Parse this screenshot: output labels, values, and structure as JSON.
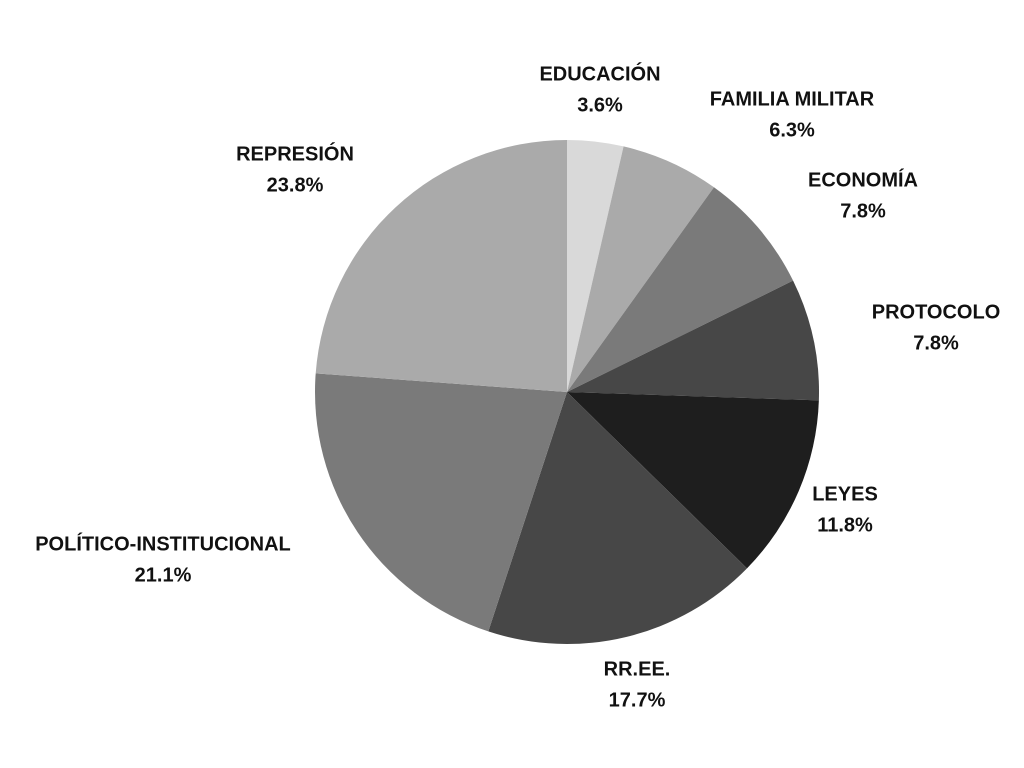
{
  "chart_data": {
    "type": "pie",
    "categories": [
      "EDUCACIÓN",
      "FAMILIA MILITAR",
      "ECONOMÍA",
      "PROTOCOLO",
      "LEYES",
      "RR.EE.",
      "POLÍTICO-INSTITUCIONAL",
      "REPRESIÓN"
    ],
    "values": [
      3.6,
      6.3,
      7.8,
      7.8,
      11.8,
      17.7,
      21.1,
      23.8
    ],
    "value_labels": [
      "3.6%",
      "6.3%",
      "7.8%",
      "7.8%",
      "11.8%",
      "17.7%",
      "21.1%",
      "23.8%"
    ],
    "colors": [
      "#d9d9d9",
      "#aaaaaa",
      "#7a7a7a",
      "#474747",
      "#1e1e1e",
      "#474747",
      "#7a7a7a",
      "#aaaaaa"
    ]
  }
}
